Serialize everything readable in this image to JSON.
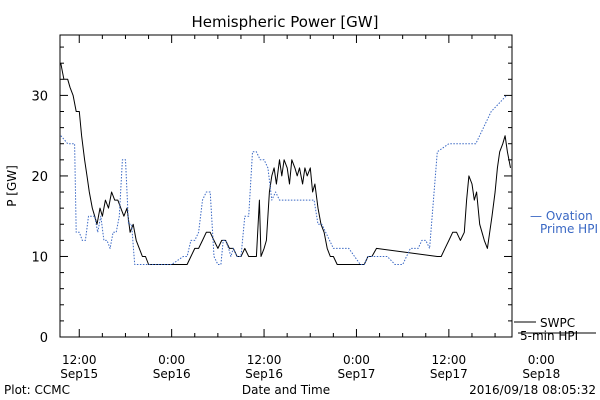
{
  "chart_data": {
    "type": "line",
    "title": "Hemispheric Power [GW]",
    "xlabel": "Date and Time",
    "ylabel": "P [GW]",
    "x_unit": "hours",
    "xlim": [
      -2.5,
      56.2
    ],
    "ylim": [
      0,
      37.5
    ],
    "y_ticks": [
      0,
      10,
      20,
      30
    ],
    "x_ticks": [
      {
        "x": 0,
        "time": "12:00",
        "date": "Sep15"
      },
      {
        "x": 12,
        "time": "0:00",
        "date": "Sep16"
      },
      {
        "x": 24,
        "time": "12:00",
        "date": "Sep16"
      },
      {
        "x": 36,
        "time": "0:00",
        "date": "Sep17"
      },
      {
        "x": 48,
        "time": "12:00",
        "date": "Sep17"
      },
      {
        "x": 60,
        "time": "0:00",
        "date": "Sep18"
      }
    ],
    "series": [
      {
        "name": "SWPC 5-min HPI",
        "legend_line1": "SWPC",
        "legend_line2": "5-min HPI",
        "color": "#000000",
        "style": "solid",
        "points": [
          [
            -2.4,
            34
          ],
          [
            -2.2,
            33
          ],
          [
            -2.0,
            32
          ],
          [
            -1.5,
            32
          ],
          [
            -1.2,
            31
          ],
          [
            -0.8,
            30
          ],
          [
            -0.4,
            28
          ],
          [
            0.0,
            28
          ],
          [
            0.3,
            25
          ],
          [
            0.7,
            22
          ],
          [
            1.0,
            20
          ],
          [
            1.3,
            18
          ],
          [
            1.7,
            16
          ],
          [
            2.0,
            15
          ],
          [
            2.3,
            14
          ],
          [
            2.7,
            16
          ],
          [
            3.0,
            15
          ],
          [
            3.4,
            17
          ],
          [
            3.8,
            16
          ],
          [
            4.2,
            18
          ],
          [
            4.6,
            17
          ],
          [
            5.0,
            17
          ],
          [
            5.4,
            16
          ],
          [
            5.8,
            15
          ],
          [
            6.2,
            16
          ],
          [
            6.6,
            13
          ],
          [
            7.0,
            14
          ],
          [
            7.4,
            12
          ],
          [
            7.8,
            11
          ],
          [
            8.2,
            10
          ],
          [
            8.6,
            10
          ],
          [
            9.0,
            9
          ],
          [
            10.0,
            9
          ],
          [
            12.0,
            9
          ],
          [
            13.0,
            9
          ],
          [
            14.0,
            9
          ],
          [
            14.5,
            10
          ],
          [
            15.0,
            11
          ],
          [
            15.5,
            11
          ],
          [
            16.0,
            12
          ],
          [
            16.5,
            13
          ],
          [
            17.0,
            13
          ],
          [
            17.5,
            12
          ],
          [
            18.0,
            11
          ],
          [
            18.5,
            12
          ],
          [
            19.0,
            12
          ],
          [
            19.5,
            11
          ],
          [
            20.0,
            11
          ],
          [
            20.5,
            10
          ],
          [
            21.0,
            10
          ],
          [
            21.5,
            11
          ],
          [
            22.0,
            10
          ],
          [
            22.5,
            10
          ],
          [
            23.0,
            10
          ],
          [
            23.4,
            17
          ],
          [
            23.6,
            10
          ],
          [
            24.0,
            11
          ],
          [
            24.3,
            12
          ],
          [
            24.7,
            18
          ],
          [
            25.0,
            20
          ],
          [
            25.3,
            21
          ],
          [
            25.6,
            19
          ],
          [
            26.0,
            22
          ],
          [
            26.3,
            20
          ],
          [
            26.6,
            22
          ],
          [
            27.0,
            21
          ],
          [
            27.3,
            19
          ],
          [
            27.6,
            22
          ],
          [
            28.0,
            21
          ],
          [
            28.3,
            20
          ],
          [
            28.6,
            21
          ],
          [
            29.0,
            19
          ],
          [
            29.3,
            21
          ],
          [
            29.6,
            20
          ],
          [
            30.0,
            21
          ],
          [
            30.3,
            18
          ],
          [
            30.6,
            19
          ],
          [
            31.0,
            16
          ],
          [
            31.4,
            14
          ],
          [
            31.8,
            13
          ],
          [
            32.2,
            11
          ],
          [
            32.6,
            10
          ],
          [
            33.0,
            10
          ],
          [
            33.5,
            9
          ],
          [
            34.0,
            9
          ],
          [
            36.0,
            9
          ],
          [
            37.0,
            9
          ],
          [
            37.5,
            10
          ],
          [
            38.0,
            10
          ],
          [
            38.6,
            11
          ],
          [
            46.5,
            10
          ],
          [
            47.0,
            10
          ],
          [
            47.5,
            11
          ],
          [
            48.0,
            12
          ],
          [
            48.5,
            13
          ],
          [
            49.0,
            13
          ],
          [
            49.5,
            12
          ],
          [
            50.0,
            13
          ],
          [
            50.3,
            17
          ],
          [
            50.6,
            20
          ],
          [
            51.0,
            19
          ],
          [
            51.3,
            17
          ],
          [
            51.6,
            18
          ],
          [
            52.0,
            14
          ],
          [
            52.3,
            13
          ],
          [
            52.6,
            12
          ],
          [
            53.0,
            11
          ],
          [
            53.3,
            13
          ],
          [
            53.6,
            15
          ],
          [
            54.0,
            18
          ],
          [
            54.3,
            21
          ],
          [
            54.6,
            23
          ],
          [
            55.0,
            24
          ],
          [
            55.3,
            25
          ],
          [
            55.6,
            23
          ],
          [
            56.0,
            21
          ]
        ]
      },
      {
        "name": "Ovation Prime HPI",
        "legend_line1": "— Ovation",
        "legend_line2": "Prime HPI",
        "color": "#3a68c4",
        "style": "dotted",
        "points": [
          [
            -2.4,
            25
          ],
          [
            -1.5,
            24
          ],
          [
            -0.6,
            24
          ],
          [
            -0.4,
            13
          ],
          [
            0.0,
            13
          ],
          [
            0.4,
            12
          ],
          [
            0.8,
            12
          ],
          [
            1.2,
            15
          ],
          [
            2.0,
            15
          ],
          [
            2.4,
            13
          ],
          [
            2.8,
            15
          ],
          [
            3.2,
            12
          ],
          [
            3.6,
            12
          ],
          [
            4.0,
            11
          ],
          [
            4.4,
            13
          ],
          [
            4.8,
            13
          ],
          [
            5.2,
            15
          ],
          [
            5.6,
            22
          ],
          [
            6.0,
            22
          ],
          [
            6.4,
            14
          ],
          [
            6.8,
            14
          ],
          [
            7.2,
            9
          ],
          [
            8.0,
            9
          ],
          [
            9.0,
            9
          ],
          [
            11.5,
            9
          ],
          [
            12.0,
            9
          ],
          [
            13.5,
            10
          ],
          [
            14.0,
            10
          ],
          [
            14.5,
            12
          ],
          [
            15.0,
            12
          ],
          [
            15.5,
            13
          ],
          [
            16.0,
            17
          ],
          [
            16.5,
            18
          ],
          [
            17.0,
            18
          ],
          [
            17.5,
            10
          ],
          [
            18.0,
            9
          ],
          [
            18.4,
            9
          ],
          [
            18.7,
            12
          ],
          [
            19.0,
            12
          ],
          [
            19.4,
            11
          ],
          [
            19.7,
            10
          ],
          [
            20.0,
            11
          ],
          [
            20.5,
            10
          ],
          [
            21.0,
            10
          ],
          [
            21.5,
            15
          ],
          [
            22.0,
            15
          ],
          [
            22.5,
            23
          ],
          [
            23.0,
            23
          ],
          [
            23.5,
            22
          ],
          [
            24.0,
            22
          ],
          [
            24.5,
            21
          ],
          [
            25.0,
            17
          ],
          [
            25.5,
            18
          ],
          [
            26.0,
            17
          ],
          [
            26.5,
            17
          ],
          [
            27.0,
            17
          ],
          [
            28.0,
            17
          ],
          [
            29.0,
            17
          ],
          [
            29.5,
            17
          ],
          [
            30.5,
            17
          ],
          [
            31.0,
            14
          ],
          [
            31.5,
            14
          ],
          [
            32.0,
            13
          ],
          [
            33.0,
            11
          ],
          [
            34.0,
            11
          ],
          [
            35.0,
            11
          ],
          [
            36.5,
            9
          ],
          [
            37.0,
            9
          ],
          [
            37.5,
            10
          ],
          [
            40.0,
            10
          ],
          [
            41.0,
            9
          ],
          [
            42.0,
            9
          ],
          [
            43.0,
            11
          ],
          [
            44.0,
            11
          ],
          [
            44.5,
            12
          ],
          [
            45.0,
            12
          ],
          [
            45.5,
            11
          ],
          [
            46.5,
            23
          ],
          [
            48.0,
            24
          ],
          [
            51.5,
            24
          ],
          [
            52.5,
            26
          ],
          [
            53.5,
            28
          ],
          [
            54.5,
            29
          ],
          [
            55.5,
            30
          ]
        ]
      }
    ]
  },
  "footer": {
    "left": "Plot: CCMC",
    "right": "2016/09/18 08:05:32"
  }
}
